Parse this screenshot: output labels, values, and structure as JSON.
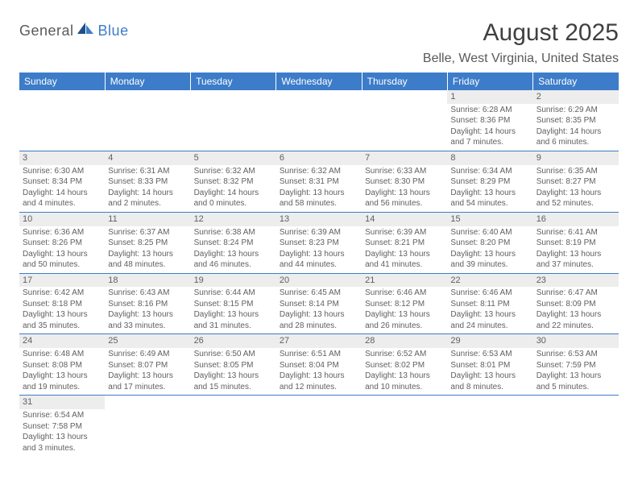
{
  "brand": {
    "part1": "General",
    "part2": "Blue"
  },
  "title": "August 2025",
  "location": "Belle, West Virginia, United States",
  "colors": {
    "header_bg": "#3d7cc9",
    "header_text": "#ffffff",
    "daynum_bg": "#ededed",
    "border": "#3d7cc9",
    "text": "#606060"
  },
  "weekdays": [
    "Sunday",
    "Monday",
    "Tuesday",
    "Wednesday",
    "Thursday",
    "Friday",
    "Saturday"
  ],
  "weeks": [
    [
      null,
      null,
      null,
      null,
      null,
      {
        "n": "1",
        "sr": "Sunrise: 6:28 AM",
        "ss": "Sunset: 8:36 PM",
        "dl": "Daylight: 14 hours and 7 minutes."
      },
      {
        "n": "2",
        "sr": "Sunrise: 6:29 AM",
        "ss": "Sunset: 8:35 PM",
        "dl": "Daylight: 14 hours and 6 minutes."
      }
    ],
    [
      {
        "n": "3",
        "sr": "Sunrise: 6:30 AM",
        "ss": "Sunset: 8:34 PM",
        "dl": "Daylight: 14 hours and 4 minutes."
      },
      {
        "n": "4",
        "sr": "Sunrise: 6:31 AM",
        "ss": "Sunset: 8:33 PM",
        "dl": "Daylight: 14 hours and 2 minutes."
      },
      {
        "n": "5",
        "sr": "Sunrise: 6:32 AM",
        "ss": "Sunset: 8:32 PM",
        "dl": "Daylight: 14 hours and 0 minutes."
      },
      {
        "n": "6",
        "sr": "Sunrise: 6:32 AM",
        "ss": "Sunset: 8:31 PM",
        "dl": "Daylight: 13 hours and 58 minutes."
      },
      {
        "n": "7",
        "sr": "Sunrise: 6:33 AM",
        "ss": "Sunset: 8:30 PM",
        "dl": "Daylight: 13 hours and 56 minutes."
      },
      {
        "n": "8",
        "sr": "Sunrise: 6:34 AM",
        "ss": "Sunset: 8:29 PM",
        "dl": "Daylight: 13 hours and 54 minutes."
      },
      {
        "n": "9",
        "sr": "Sunrise: 6:35 AM",
        "ss": "Sunset: 8:27 PM",
        "dl": "Daylight: 13 hours and 52 minutes."
      }
    ],
    [
      {
        "n": "10",
        "sr": "Sunrise: 6:36 AM",
        "ss": "Sunset: 8:26 PM",
        "dl": "Daylight: 13 hours and 50 minutes."
      },
      {
        "n": "11",
        "sr": "Sunrise: 6:37 AM",
        "ss": "Sunset: 8:25 PM",
        "dl": "Daylight: 13 hours and 48 minutes."
      },
      {
        "n": "12",
        "sr": "Sunrise: 6:38 AM",
        "ss": "Sunset: 8:24 PM",
        "dl": "Daylight: 13 hours and 46 minutes."
      },
      {
        "n": "13",
        "sr": "Sunrise: 6:39 AM",
        "ss": "Sunset: 8:23 PM",
        "dl": "Daylight: 13 hours and 44 minutes."
      },
      {
        "n": "14",
        "sr": "Sunrise: 6:39 AM",
        "ss": "Sunset: 8:21 PM",
        "dl": "Daylight: 13 hours and 41 minutes."
      },
      {
        "n": "15",
        "sr": "Sunrise: 6:40 AM",
        "ss": "Sunset: 8:20 PM",
        "dl": "Daylight: 13 hours and 39 minutes."
      },
      {
        "n": "16",
        "sr": "Sunrise: 6:41 AM",
        "ss": "Sunset: 8:19 PM",
        "dl": "Daylight: 13 hours and 37 minutes."
      }
    ],
    [
      {
        "n": "17",
        "sr": "Sunrise: 6:42 AM",
        "ss": "Sunset: 8:18 PM",
        "dl": "Daylight: 13 hours and 35 minutes."
      },
      {
        "n": "18",
        "sr": "Sunrise: 6:43 AM",
        "ss": "Sunset: 8:16 PM",
        "dl": "Daylight: 13 hours and 33 minutes."
      },
      {
        "n": "19",
        "sr": "Sunrise: 6:44 AM",
        "ss": "Sunset: 8:15 PM",
        "dl": "Daylight: 13 hours and 31 minutes."
      },
      {
        "n": "20",
        "sr": "Sunrise: 6:45 AM",
        "ss": "Sunset: 8:14 PM",
        "dl": "Daylight: 13 hours and 28 minutes."
      },
      {
        "n": "21",
        "sr": "Sunrise: 6:46 AM",
        "ss": "Sunset: 8:12 PM",
        "dl": "Daylight: 13 hours and 26 minutes."
      },
      {
        "n": "22",
        "sr": "Sunrise: 6:46 AM",
        "ss": "Sunset: 8:11 PM",
        "dl": "Daylight: 13 hours and 24 minutes."
      },
      {
        "n": "23",
        "sr": "Sunrise: 6:47 AM",
        "ss": "Sunset: 8:09 PM",
        "dl": "Daylight: 13 hours and 22 minutes."
      }
    ],
    [
      {
        "n": "24",
        "sr": "Sunrise: 6:48 AM",
        "ss": "Sunset: 8:08 PM",
        "dl": "Daylight: 13 hours and 19 minutes."
      },
      {
        "n": "25",
        "sr": "Sunrise: 6:49 AM",
        "ss": "Sunset: 8:07 PM",
        "dl": "Daylight: 13 hours and 17 minutes."
      },
      {
        "n": "26",
        "sr": "Sunrise: 6:50 AM",
        "ss": "Sunset: 8:05 PM",
        "dl": "Daylight: 13 hours and 15 minutes."
      },
      {
        "n": "27",
        "sr": "Sunrise: 6:51 AM",
        "ss": "Sunset: 8:04 PM",
        "dl": "Daylight: 13 hours and 12 minutes."
      },
      {
        "n": "28",
        "sr": "Sunrise: 6:52 AM",
        "ss": "Sunset: 8:02 PM",
        "dl": "Daylight: 13 hours and 10 minutes."
      },
      {
        "n": "29",
        "sr": "Sunrise: 6:53 AM",
        "ss": "Sunset: 8:01 PM",
        "dl": "Daylight: 13 hours and 8 minutes."
      },
      {
        "n": "30",
        "sr": "Sunrise: 6:53 AM",
        "ss": "Sunset: 7:59 PM",
        "dl": "Daylight: 13 hours and 5 minutes."
      }
    ],
    [
      {
        "n": "31",
        "sr": "Sunrise: 6:54 AM",
        "ss": "Sunset: 7:58 PM",
        "dl": "Daylight: 13 hours and 3 minutes."
      },
      null,
      null,
      null,
      null,
      null,
      null
    ]
  ]
}
